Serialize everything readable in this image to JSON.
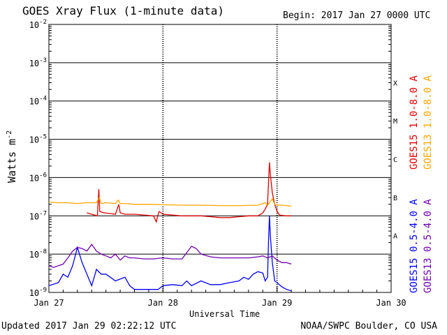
{
  "header": {
    "title": "GOES Xray Flux (1-minute data)",
    "begin_label": "Begin:",
    "begin_value": "2017 Jan 27 0000 UTC"
  },
  "footer": {
    "updated": "Updated 2017 Jan 29 02:22:12 UTC",
    "credit": "NOAA/SWPC Boulder, CO USA"
  },
  "chart_data": {
    "type": "line",
    "title": "GOES Xray Flux (1-minute data)",
    "xlabel": "Universal Time",
    "ylabel": "Watts m",
    "ylabel_superscript": "-2",
    "y_scale": "log",
    "ylim": [
      1e-09,
      0.01
    ],
    "xlim_hours": [
      0,
      72
    ],
    "x_ticks": [
      {
        "hour": 0,
        "label": "Jan 27"
      },
      {
        "hour": 24,
        "label": "Jan 28"
      },
      {
        "hour": 48,
        "label": "Jan 29"
      },
      {
        "hour": 72,
        "label": "Jan 30"
      }
    ],
    "y_ticks": [
      {
        "value": 1e-09,
        "exp": "-9"
      },
      {
        "value": 1e-08,
        "exp": "-8"
      },
      {
        "value": 1e-07,
        "exp": "-7"
      },
      {
        "value": 1e-06,
        "exp": "-6"
      },
      {
        "value": 1e-05,
        "exp": "-5"
      },
      {
        "value": 0.0001,
        "exp": "-4"
      },
      {
        "value": 0.001,
        "exp": "-3"
      },
      {
        "value": 0.01,
        "exp": "-2"
      }
    ],
    "flare_classes": [
      {
        "label": "X",
        "value": 0.0001
      },
      {
        "label": "M",
        "value": 1e-05
      },
      {
        "label": "C",
        "value": 1e-06
      },
      {
        "label": "B",
        "value": 1e-07
      },
      {
        "label": "A",
        "value": 1e-08
      }
    ],
    "grid": true,
    "legend_position": "right",
    "series": [
      {
        "name": "GOES15 1.0-8.0 A",
        "color": "#e00000",
        "points": [
          [
            8,
            1.2e-07
          ],
          [
            9,
            1.1e-07
          ],
          [
            10.2,
            1e-07
          ],
          [
            10.5,
            5e-07
          ],
          [
            10.7,
            1.3e-07
          ],
          [
            11.5,
            1.2e-07
          ],
          [
            13,
            1.15e-07
          ],
          [
            14,
            1.1e-07
          ],
          [
            14.7,
            2e-07
          ],
          [
            15,
            1.2e-07
          ],
          [
            16,
            1.1e-07
          ],
          [
            17,
            1.1e-07
          ],
          [
            18,
            1.1e-07
          ],
          [
            20,
            1.05e-07
          ],
          [
            22,
            1e-07
          ],
          [
            22.6,
            7e-08
          ],
          [
            22.9,
            1e-07
          ],
          [
            23.2,
            1.3e-07
          ],
          [
            24,
            1.1e-07
          ],
          [
            26,
            1.05e-07
          ],
          [
            28,
            1e-07
          ],
          [
            30,
            1e-07
          ],
          [
            32,
            1e-07
          ],
          [
            34,
            9.5e-08
          ],
          [
            36,
            9e-08
          ],
          [
            38,
            9e-08
          ],
          [
            40,
            9.5e-08
          ],
          [
            42,
            1e-07
          ],
          [
            44,
            1e-07
          ],
          [
            45,
            1.2e-07
          ],
          [
            45.5,
            1.5e-07
          ],
          [
            46,
            2e-07
          ],
          [
            46.2,
            7e-07
          ],
          [
            46.4,
            2.5e-06
          ],
          [
            46.6,
            1.2e-06
          ],
          [
            47,
            4e-07
          ],
          [
            47.5,
            2e-07
          ],
          [
            48,
            1.3e-07
          ],
          [
            48.5,
            1.05e-07
          ],
          [
            50,
            1e-07
          ],
          [
            51,
            1e-07
          ]
        ]
      },
      {
        "name": "GOES13 1.0-8.0 A",
        "color": "#ffa500",
        "points": [
          [
            0,
            2.3e-07
          ],
          [
            2,
            2.2e-07
          ],
          [
            4,
            2.2e-07
          ],
          [
            6,
            2.1e-07
          ],
          [
            8,
            2.2e-07
          ],
          [
            10,
            2.2e-07
          ],
          [
            10.6,
            3e-07
          ],
          [
            11,
            2.1e-07
          ],
          [
            12,
            2.2e-07
          ],
          [
            14,
            2.1e-07
          ],
          [
            14.6,
            2.6e-07
          ],
          [
            15,
            2.1e-07
          ],
          [
            16,
            2.1e-07
          ],
          [
            18,
            2e-07
          ],
          [
            20,
            2e-07
          ],
          [
            22,
            2e-07
          ],
          [
            24,
            1.95e-07
          ],
          [
            28,
            1.9e-07
          ],
          [
            32,
            1.9e-07
          ],
          [
            36,
            1.85e-07
          ],
          [
            40,
            1.85e-07
          ],
          [
            44,
            1.9e-07
          ],
          [
            45.5,
            2.2e-07
          ],
          [
            46,
            1.9e-07
          ],
          [
            47,
            2.8e-07
          ],
          [
            47.5,
            2e-07
          ],
          [
            48,
            1.9e-07
          ],
          [
            49,
            1.9e-07
          ],
          [
            51,
            1.8e-07
          ]
        ]
      },
      {
        "name": "GOES15 0.5-4.0 A",
        "color": "#0000ff",
        "points": [
          [
            0,
            1.5e-09
          ],
          [
            2,
            1.8e-09
          ],
          [
            3,
            3e-09
          ],
          [
            4,
            2.5e-09
          ],
          [
            5,
            5e-09
          ],
          [
            6,
            1.5e-08
          ],
          [
            7,
            6e-09
          ],
          [
            8,
            3e-09
          ],
          [
            9,
            1.5e-09
          ],
          [
            10,
            4e-09
          ],
          [
            11,
            3e-09
          ],
          [
            12,
            3e-09
          ],
          [
            14,
            2e-09
          ],
          [
            16,
            2.5e-09
          ],
          [
            17,
            1.5e-09
          ],
          [
            18,
            1.2e-09
          ],
          [
            23,
            1.2e-09
          ],
          [
            24,
            1.5e-09
          ],
          [
            26,
            1.6e-09
          ],
          [
            28,
            1.5e-09
          ],
          [
            29,
            2e-09
          ],
          [
            30,
            1.5e-09
          ],
          [
            32,
            2e-09
          ],
          [
            34,
            1.6e-09
          ],
          [
            36,
            1.6e-09
          ],
          [
            38,
            1.8e-09
          ],
          [
            40,
            2e-09
          ],
          [
            41,
            2.5e-09
          ],
          [
            42,
            2.2e-09
          ],
          [
            43,
            3e-09
          ],
          [
            44,
            3.5e-09
          ],
          [
            45,
            3.2e-09
          ],
          [
            45.5,
            2e-09
          ],
          [
            46,
            2.5e-09
          ],
          [
            46.2,
            2e-08
          ],
          [
            46.4,
            1e-07
          ],
          [
            46.6,
            3e-08
          ],
          [
            47,
            6e-09
          ],
          [
            47.5,
            2e-09
          ],
          [
            48,
            1.8e-09
          ],
          [
            49,
            1.4e-09
          ],
          [
            50,
            1.2e-09
          ],
          [
            51,
            1.1e-09
          ]
        ]
      },
      {
        "name": "GOES13 0.5-4.0 A",
        "color": "#7000b0",
        "points": [
          [
            0,
            5e-09
          ],
          [
            1,
            4.5e-09
          ],
          [
            2,
            5e-09
          ],
          [
            3,
            5.5e-09
          ],
          [
            4,
            8e-09
          ],
          [
            5,
            1.2e-08
          ],
          [
            6,
            1.5e-08
          ],
          [
            7,
            1.4e-08
          ],
          [
            8,
            1.2e-08
          ],
          [
            9,
            1.8e-08
          ],
          [
            10,
            1.2e-08
          ],
          [
            11,
            1e-08
          ],
          [
            12,
            9e-09
          ],
          [
            13,
            8e-09
          ],
          [
            14,
            1e-08
          ],
          [
            15,
            7e-09
          ],
          [
            16,
            9e-09
          ],
          [
            17,
            8e-09
          ],
          [
            18,
            8e-09
          ],
          [
            20,
            7.5e-09
          ],
          [
            22,
            7.5e-09
          ],
          [
            24,
            8e-09
          ],
          [
            26,
            7.5e-09
          ],
          [
            28,
            7.5e-09
          ],
          [
            30,
            1.6e-08
          ],
          [
            31,
            1.4e-08
          ],
          [
            32,
            1e-08
          ],
          [
            34,
            8.5e-09
          ],
          [
            36,
            8e-09
          ],
          [
            38,
            8e-09
          ],
          [
            40,
            8e-09
          ],
          [
            42,
            8e-09
          ],
          [
            44,
            8.5e-09
          ],
          [
            45,
            9e-09
          ],
          [
            46,
            8e-09
          ],
          [
            47,
            9e-09
          ],
          [
            48,
            7e-09
          ],
          [
            49,
            6e-09
          ],
          [
            50,
            6e-09
          ],
          [
            51,
            5.5e-09
          ]
        ]
      }
    ]
  }
}
